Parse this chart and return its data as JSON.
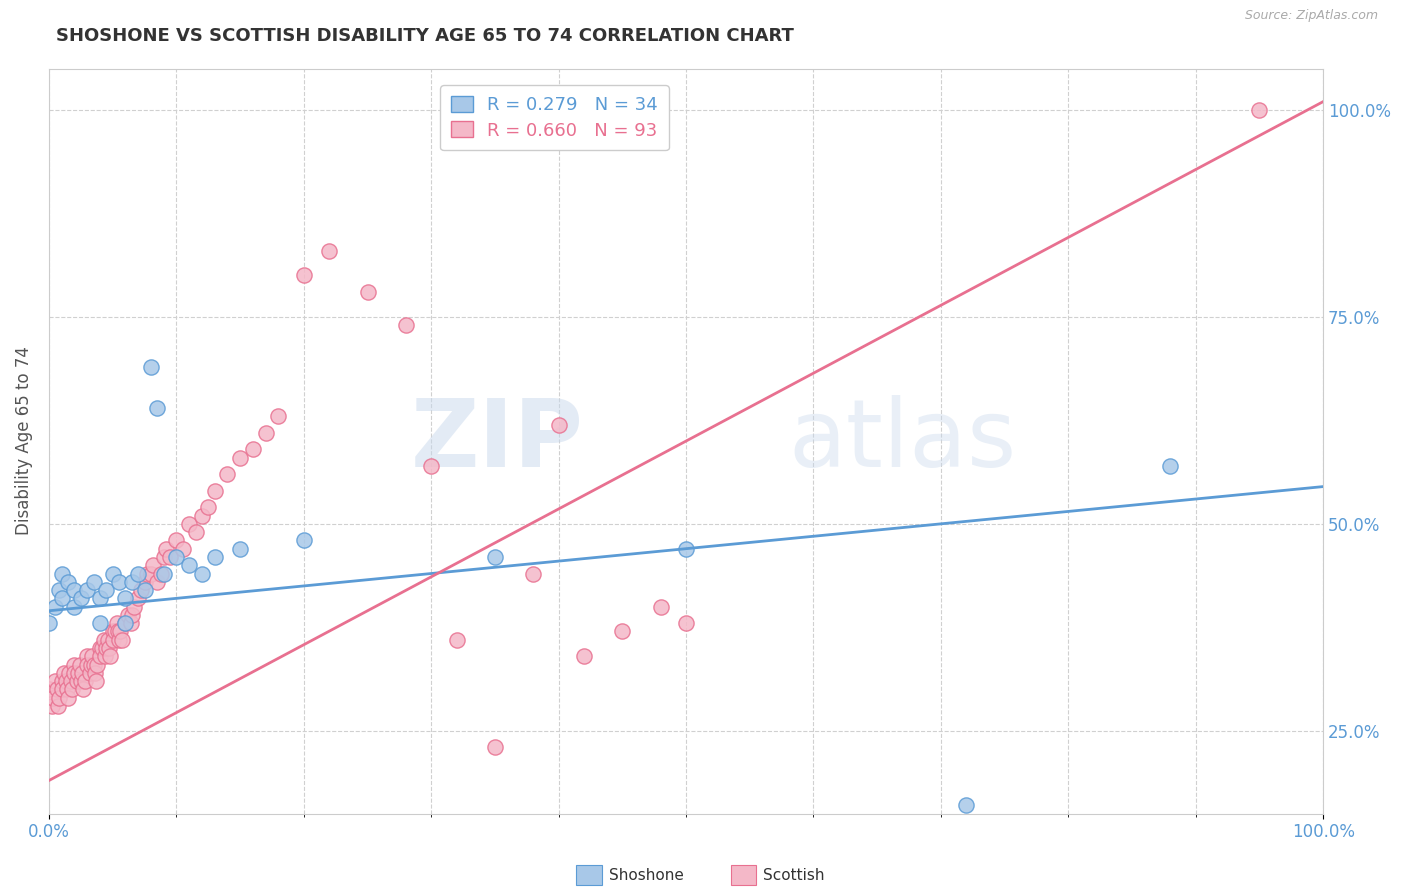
{
  "title": "SHOSHONE VS SCOTTISH DISABILITY AGE 65 TO 74 CORRELATION CHART",
  "source": "Source: ZipAtlas.com",
  "ylabel": "Disability Age 65 to 74",
  "xlim": [
    0.0,
    1.0
  ],
  "ylim": [
    0.15,
    1.05
  ],
  "xtick_positions": [
    0.0,
    1.0
  ],
  "xtick_labels": [
    "0.0%",
    "100.0%"
  ],
  "ytick_positions": [
    0.25,
    0.5,
    0.75,
    1.0
  ],
  "ytick_labels": [
    "25.0%",
    "50.0%",
    "75.0%",
    "100.0%"
  ],
  "shoshone_color": "#a8c8e8",
  "shoshone_edge_color": "#5b9bd5",
  "scottish_color": "#f4b8c8",
  "scottish_edge_color": "#e87090",
  "shoshone_line_color": "#5b9bd5",
  "scottish_line_color": "#e87090",
  "shoshone_R": 0.279,
  "shoshone_N": 34,
  "scottish_R": 0.66,
  "scottish_N": 93,
  "shoshone_line_x0": 0.0,
  "shoshone_line_y0": 0.395,
  "shoshone_line_x1": 1.0,
  "shoshone_line_y1": 0.545,
  "scottish_line_x0": 0.0,
  "scottish_line_y0": 0.19,
  "scottish_line_x1": 1.0,
  "scottish_line_y1": 1.01,
  "shoshone_scatter_x": [
    0.0,
    0.005,
    0.008,
    0.01,
    0.01,
    0.015,
    0.02,
    0.02,
    0.025,
    0.03,
    0.035,
    0.04,
    0.04,
    0.045,
    0.05,
    0.055,
    0.06,
    0.06,
    0.065,
    0.07,
    0.075,
    0.08,
    0.085,
    0.09,
    0.1,
    0.11,
    0.12,
    0.13,
    0.15,
    0.2,
    0.35,
    0.5,
    0.72,
    0.88
  ],
  "shoshone_scatter_y": [
    0.38,
    0.4,
    0.42,
    0.41,
    0.44,
    0.43,
    0.42,
    0.4,
    0.41,
    0.42,
    0.43,
    0.41,
    0.38,
    0.42,
    0.44,
    0.43,
    0.41,
    0.38,
    0.43,
    0.44,
    0.42,
    0.69,
    0.64,
    0.44,
    0.46,
    0.45,
    0.44,
    0.46,
    0.47,
    0.48,
    0.46,
    0.47,
    0.16,
    0.57
  ],
  "scottish_scatter_x": [
    0.0,
    0.002,
    0.003,
    0.005,
    0.006,
    0.007,
    0.008,
    0.01,
    0.01,
    0.012,
    0.013,
    0.014,
    0.015,
    0.016,
    0.017,
    0.018,
    0.02,
    0.02,
    0.022,
    0.023,
    0.024,
    0.025,
    0.026,
    0.027,
    0.028,
    0.03,
    0.03,
    0.032,
    0.033,
    0.034,
    0.035,
    0.036,
    0.037,
    0.038,
    0.04,
    0.04,
    0.042,
    0.043,
    0.044,
    0.045,
    0.046,
    0.047,
    0.048,
    0.05,
    0.05,
    0.052,
    0.053,
    0.054,
    0.055,
    0.056,
    0.057,
    0.06,
    0.062,
    0.064,
    0.065,
    0.067,
    0.07,
    0.072,
    0.075,
    0.077,
    0.08,
    0.082,
    0.085,
    0.088,
    0.09,
    0.092,
    0.095,
    0.1,
    0.105,
    0.11,
    0.115,
    0.12,
    0.125,
    0.13,
    0.14,
    0.15,
    0.16,
    0.17,
    0.18,
    0.2,
    0.22,
    0.25,
    0.28,
    0.3,
    0.32,
    0.35,
    0.38,
    0.4,
    0.42,
    0.45,
    0.48,
    0.5,
    0.95
  ],
  "scottish_scatter_y": [
    0.3,
    0.28,
    0.29,
    0.31,
    0.3,
    0.28,
    0.29,
    0.31,
    0.3,
    0.32,
    0.31,
    0.3,
    0.29,
    0.32,
    0.31,
    0.3,
    0.33,
    0.32,
    0.31,
    0.32,
    0.33,
    0.31,
    0.32,
    0.3,
    0.31,
    0.34,
    0.33,
    0.32,
    0.33,
    0.34,
    0.33,
    0.32,
    0.31,
    0.33,
    0.35,
    0.34,
    0.35,
    0.36,
    0.34,
    0.35,
    0.36,
    0.35,
    0.34,
    0.37,
    0.36,
    0.37,
    0.38,
    0.37,
    0.36,
    0.37,
    0.36,
    0.38,
    0.39,
    0.38,
    0.39,
    0.4,
    0.41,
    0.42,
    0.43,
    0.44,
    0.44,
    0.45,
    0.43,
    0.44,
    0.46,
    0.47,
    0.46,
    0.48,
    0.47,
    0.5,
    0.49,
    0.51,
    0.52,
    0.54,
    0.56,
    0.58,
    0.59,
    0.61,
    0.63,
    0.8,
    0.83,
    0.78,
    0.74,
    0.57,
    0.36,
    0.23,
    0.44,
    0.62,
    0.34,
    0.37,
    0.4,
    0.38,
    1.0
  ],
  "background_color": "#ffffff",
  "grid_color": "#d0d0d0",
  "tick_color": "#5b9bd5",
  "watermark_text": "ZIPatlas",
  "watermark_color": "#d0d8e8",
  "legend_shoshone_label": "R = 0.279   N = 34",
  "legend_scottish_label": "R = 0.660   N = 93",
  "bottom_legend_shoshone": "Shoshone",
  "bottom_legend_scottish": "Scottish"
}
